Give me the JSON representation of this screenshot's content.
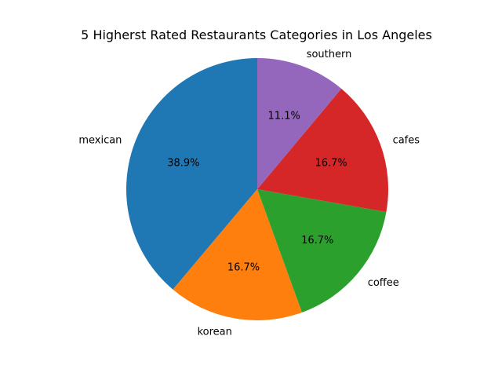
{
  "chart_data": {
    "type": "pie",
    "title": "5 Higherst Rated Restaurants Categories in Los Angeles",
    "start_angle_deg": 90,
    "direction": "counterclockwise",
    "slices": [
      {
        "label": "mexican",
        "value": 38.9,
        "pct_label": "38.9%",
        "color": "#1f77b4"
      },
      {
        "label": "korean",
        "value": 16.7,
        "pct_label": "16.7%",
        "color": "#ff7f0e"
      },
      {
        "label": "coffee",
        "value": 16.7,
        "pct_label": "16.7%",
        "color": "#2ca02c"
      },
      {
        "label": "cafes",
        "value": 16.7,
        "pct_label": "16.7%",
        "color": "#d62728"
      },
      {
        "label": "southern",
        "value": 11.1,
        "pct_label": "11.1%",
        "color": "#9467bd"
      }
    ]
  }
}
